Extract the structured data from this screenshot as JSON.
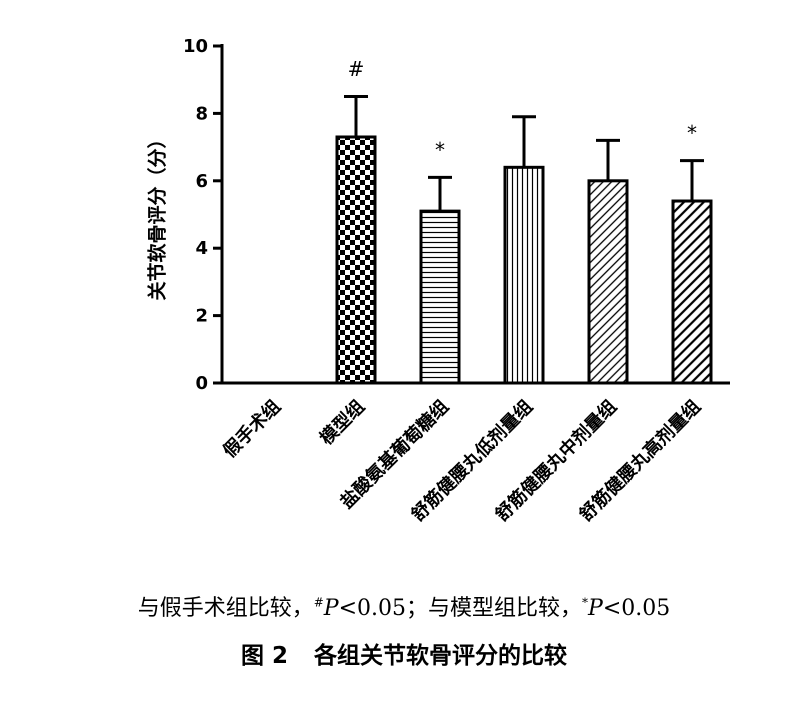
{
  "chart_data": {
    "type": "bar",
    "ylabel": "关节软骨评分（分）",
    "xlabel": "",
    "ylim": [
      0,
      10
    ],
    "yticks": [
      "0",
      "2",
      "4",
      "6",
      "8",
      "10"
    ],
    "categories": [
      "假手术组",
      "模型组",
      "盐酸氨基葡萄糖组",
      "舒筋健腰丸低剂量组",
      "舒筋健腰丸中剂量组",
      "舒筋健腰丸高剂量组"
    ],
    "series": [
      {
        "values": [
          0,
          7.3,
          5.1,
          6.4,
          6.0,
          5.4
        ],
        "error": [
          0,
          1.2,
          1.0,
          1.5,
          1.2,
          1.2
        ],
        "significance": [
          "",
          "#",
          "*",
          "",
          "",
          "*"
        ],
        "patterns": [
          "none",
          "checker",
          "horizontal-lines",
          "vertical-lines",
          "diagonal-thin",
          "diagonal-thick"
        ]
      }
    ],
    "grid": false,
    "legend": "none"
  },
  "note": {
    "part1": "与假手术组比较，",
    "mark1": "#",
    "p1": "P",
    "val1": "<0.05；与模型组比较，",
    "mark2": "*",
    "p2": "P",
    "val2": "<0.05"
  },
  "caption": {
    "number": "图 2",
    "title": "各组关节软骨评分的比较"
  }
}
